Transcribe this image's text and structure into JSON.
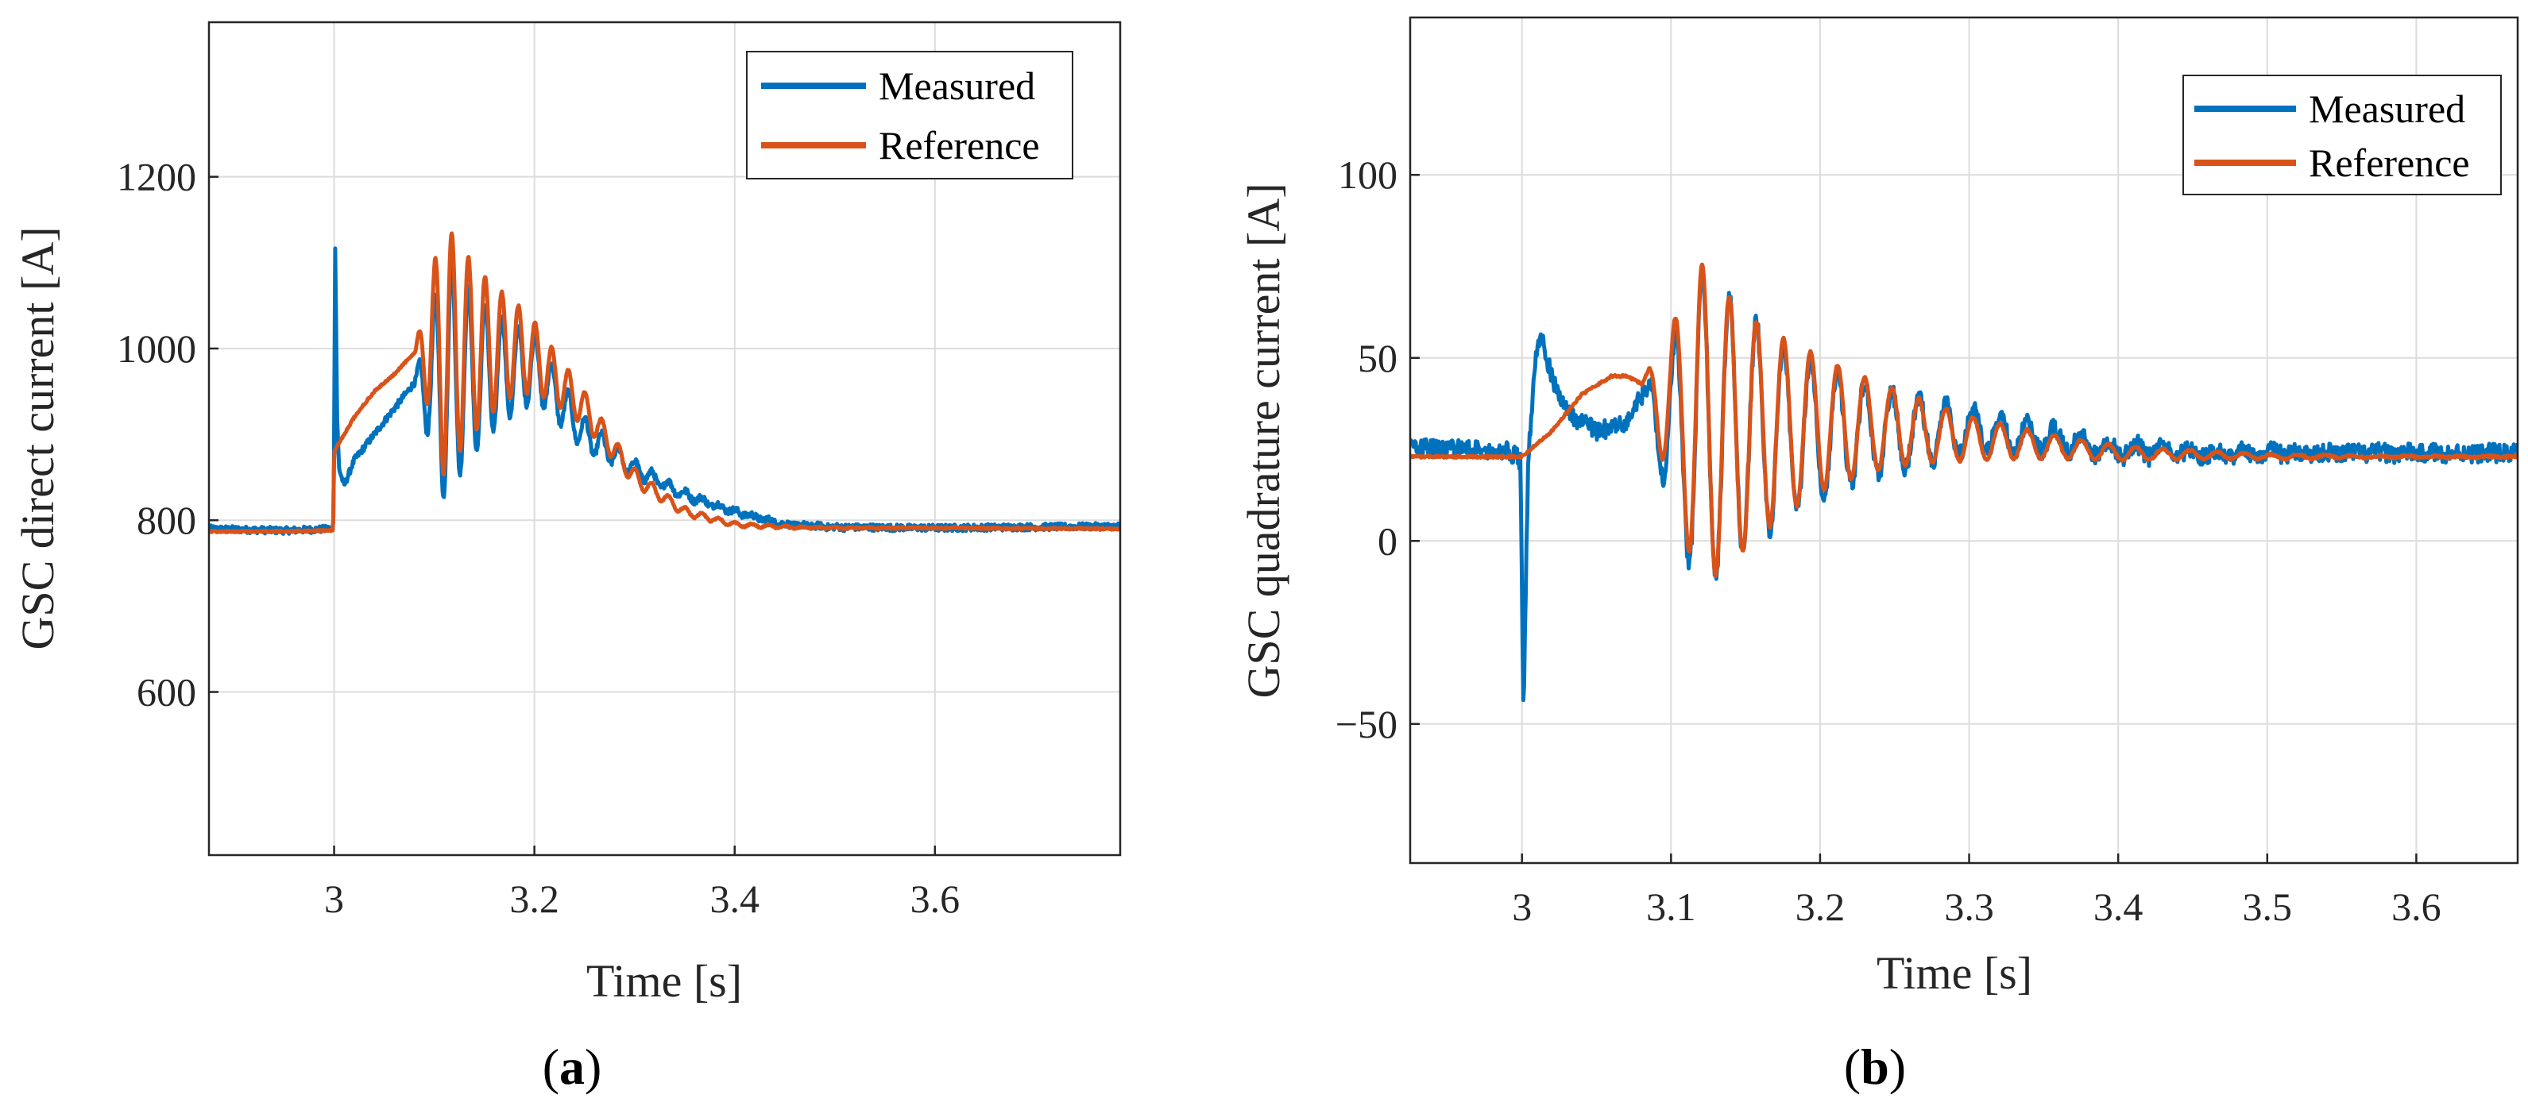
{
  "colors": {
    "measured": "#0072BD",
    "reference": "#D95319"
  },
  "chart_data": [
    {
      "type": "line",
      "panel_label": "a",
      "xlabel": "Time [s]",
      "ylabel": "GSC direct current [A]",
      "xlim": [
        2.875,
        3.785
      ],
      "ylim": [
        410,
        1380
      ],
      "xticks": [
        3,
        3.2,
        3.4,
        3.6
      ],
      "yticks": [
        600,
        800,
        1000,
        1200
      ],
      "grid": true,
      "legend_position": "top-right",
      "legend": [
        "Measured",
        "Reference"
      ],
      "series": [
        {
          "name": "Measured",
          "color": "#0072BD",
          "x": [
            2.875,
            2.95,
            2.999,
            3.0,
            3.001,
            3.003,
            3.005,
            3.01,
            3.02,
            3.04,
            3.06,
            3.08,
            3.2,
            3.25,
            3.3,
            3.35,
            3.4,
            3.45,
            3.5,
            3.6,
            3.785
          ],
          "y": [
            790,
            788,
            790,
            880,
            1130,
            920,
            860,
            840,
            870,
            900,
            930,
            960,
            980,
            900,
            860,
            830,
            810,
            795,
            792,
            791,
            793
          ]
        },
        {
          "name": "Reference",
          "color": "#D95319",
          "x": [
            2.875,
            2.95,
            2.999,
            3.0,
            3.01,
            3.02,
            3.04,
            3.06,
            3.08,
            3.1,
            3.12,
            3.15,
            3.18,
            3.2,
            3.25,
            3.3,
            3.35,
            3.4,
            3.45,
            3.5,
            3.6,
            3.785
          ],
          "y": [
            787,
            787,
            788,
            880,
            900,
            920,
            950,
            970,
            995,
            1000,
            1000,
            1000,
            1000,
            990,
            930,
            850,
            810,
            795,
            792,
            791,
            791,
            790
          ]
        }
      ]
    },
    {
      "type": "line",
      "panel_label": "b",
      "xlabel": "Time [s]",
      "ylabel": "GSC quadrature current [A]",
      "xlim": [
        2.925,
        3.668
      ],
      "ylim": [
        -88,
        143
      ],
      "xticks": [
        3,
        3.1,
        3.2,
        3.3,
        3.4,
        3.5,
        3.6
      ],
      "yticks": [
        -50,
        0,
        50,
        100
      ],
      "grid": true,
      "legend_position": "top-right",
      "legend": [
        "Measured",
        "Reference"
      ],
      "series": [
        {
          "name": "Measured",
          "color": "#0072BD",
          "x": [
            2.925,
            2.95,
            2.99,
            2.999,
            3.001,
            3.004,
            3.008,
            3.012,
            3.02,
            3.03,
            3.05,
            3.07,
            3.08,
            3.1,
            3.14,
            3.2,
            3.25,
            3.3,
            3.35,
            3.4,
            3.45,
            3.5,
            3.6,
            3.668
          ],
          "y": [
            26,
            25,
            25,
            22,
            -48,
            20,
            45,
            57,
            45,
            35,
            30,
            32,
            40,
            30,
            30,
            30,
            30,
            30,
            28,
            25,
            24,
            24,
            24,
            24
          ]
        },
        {
          "name": "Reference",
          "color": "#D95319",
          "x": [
            2.925,
            2.98,
            3.0,
            3.02,
            3.04,
            3.06,
            3.07,
            3.08,
            3.1,
            3.12,
            3.15,
            3.2,
            3.25,
            3.3,
            3.35,
            3.4,
            3.5,
            3.6,
            3.668
          ],
          "y": [
            23,
            23,
            23,
            30,
            40,
            45,
            45,
            43,
            36,
            31,
            30,
            32,
            31,
            28,
            26,
            24,
            23,
            23,
            23
          ]
        }
      ]
    }
  ]
}
